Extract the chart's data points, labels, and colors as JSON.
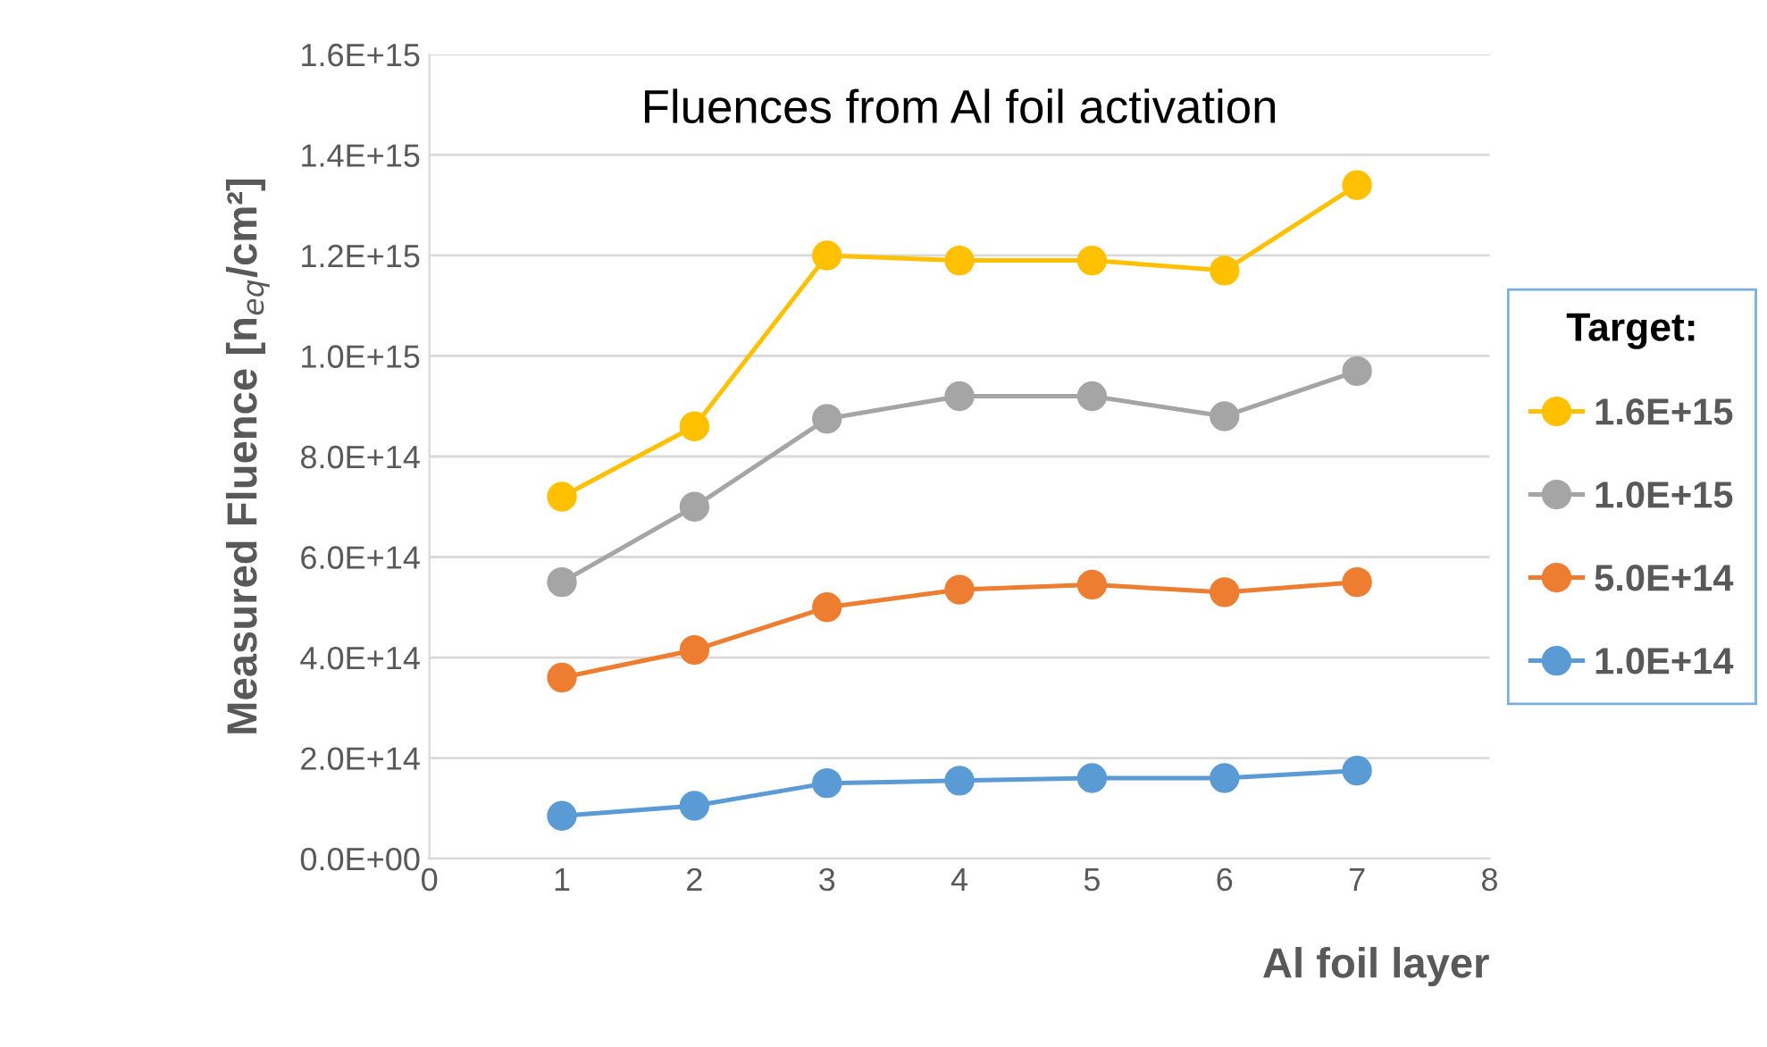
{
  "chart_data": {
    "type": "line",
    "title": "Fluences from Al foil activation",
    "xlabel": "Al foil layer",
    "ylabel": "Measured Fluence [n$_{eq}$/cm²]",
    "legend_title": "Target:",
    "x": [
      1,
      2,
      3,
      4,
      5,
      6,
      7
    ],
    "series": [
      {
        "name": "1.6E+15",
        "color": "#ffc000",
        "values": [
          720000000000000.0,
          860000000000000.0,
          1200000000000000.0,
          1190000000000000.0,
          1190000000000000.0,
          1170000000000000.0,
          1340000000000000.0
        ]
      },
      {
        "name": "1.0E+15",
        "color": "#a5a5a5",
        "values": [
          550000000000000.0,
          700000000000000.0,
          875000000000000.0,
          920000000000000.0,
          920000000000000.0,
          880000000000000.0,
          970000000000000.0
        ]
      },
      {
        "name": "5.0E+14",
        "color": "#ed7d31",
        "values": [
          360000000000000.0,
          415000000000000.0,
          500000000000000.0,
          535000000000000.0,
          545000000000000.0,
          530000000000000.0,
          550000000000000.0
        ]
      },
      {
        "name": "1.0E+14",
        "color": "#5b9bd5",
        "values": [
          85000000000000.0,
          105000000000000.0,
          150000000000000.0,
          155000000000000.0,
          160000000000000.0,
          160000000000000.0,
          175000000000000.0
        ]
      }
    ],
    "xlim": [
      0,
      8
    ],
    "xticks": [
      0,
      1,
      2,
      3,
      4,
      5,
      6,
      7,
      8
    ],
    "ylim": [
      0,
      1600000000000000.0
    ],
    "yticks": [
      {
        "value": 0,
        "label": "0.0E+00"
      },
      {
        "value": 200000000000000.0,
        "label": "2.0E+14"
      },
      {
        "value": 400000000000000.0,
        "label": "4.0E+14"
      },
      {
        "value": 600000000000000.0,
        "label": "6.0E+14"
      },
      {
        "value": 800000000000000.0,
        "label": "8.0E+14"
      },
      {
        "value": 1000000000000000.0,
        "label": "1.0E+15"
      },
      {
        "value": 1200000000000000.0,
        "label": "1.2E+15"
      },
      {
        "value": 1400000000000000.0,
        "label": "1.4E+15"
      },
      {
        "value": 1600000000000000.0,
        "label": "1.6E+15"
      }
    ],
    "grid": "y",
    "legend": "right",
    "marker": "circle",
    "line_style": "solid"
  }
}
